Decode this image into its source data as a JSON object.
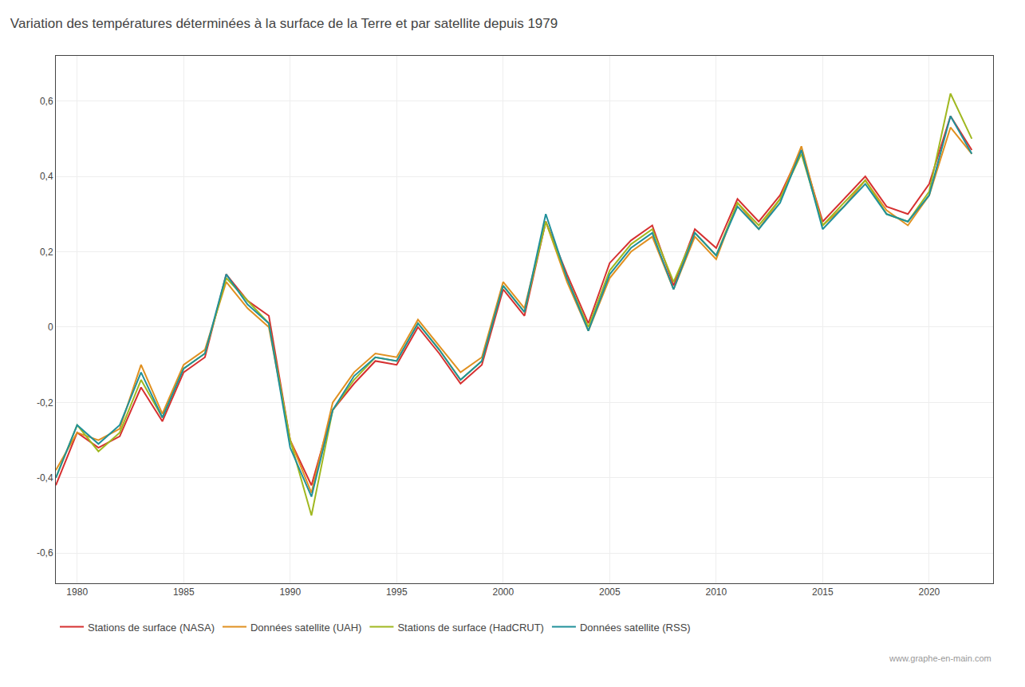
{
  "chart_data": {
    "type": "line",
    "title": "Variation des températures déterminées à la surface de la Terre et par satellite depuis 1979",
    "x": [
      1979,
      1980,
      1981,
      1982,
      1983,
      1984,
      1985,
      1986,
      1987,
      1988,
      1989,
      1990,
      1991,
      1992,
      1993,
      1994,
      1995,
      1996,
      1997,
      1998,
      1999,
      2000,
      2001,
      2002,
      2003,
      2004,
      2005,
      2006,
      2007,
      2008,
      2009,
      2010,
      2011,
      2012,
      2013,
      2014,
      2015,
      2016,
      2017,
      2018,
      2019,
      2020,
      2021,
      2022
    ],
    "series": [
      {
        "name": "Stations de surface (NASA)",
        "color": "#d63030",
        "values": [
          -0.42,
          -0.28,
          -0.32,
          -0.29,
          -0.16,
          -0.25,
          -0.12,
          -0.08,
          0.14,
          0.07,
          0.03,
          -0.3,
          -0.42,
          -0.22,
          -0.15,
          -0.09,
          -0.1,
          0.0,
          -0.07,
          -0.15,
          -0.1,
          0.1,
          0.03,
          0.28,
          0.14,
          0.01,
          0.17,
          0.23,
          0.27,
          0.11,
          0.26,
          0.21,
          0.34,
          0.28,
          0.35,
          0.47,
          0.28,
          0.34,
          0.4,
          0.32,
          0.3,
          0.38,
          0.56,
          0.47
        ]
      },
      {
        "name": "Données satellite (UAH)",
        "color": "#e09020",
        "values": [
          -0.38,
          -0.28,
          -0.3,
          -0.27,
          -0.1,
          -0.23,
          -0.1,
          -0.06,
          0.12,
          0.05,
          0.0,
          -0.3,
          -0.44,
          -0.2,
          -0.12,
          -0.07,
          -0.08,
          0.02,
          -0.05,
          -0.12,
          -0.08,
          0.12,
          0.05,
          0.28,
          0.12,
          -0.01,
          0.13,
          0.2,
          0.24,
          0.1,
          0.24,
          0.18,
          0.33,
          0.26,
          0.34,
          0.48,
          0.27,
          0.32,
          0.39,
          0.31,
          0.27,
          0.35,
          0.53,
          0.46
        ]
      },
      {
        "name": "Stations de surface (HadCRUT)",
        "color": "#a0b820",
        "values": [
          -0.4,
          -0.26,
          -0.33,
          -0.28,
          -0.14,
          -0.24,
          -0.11,
          -0.07,
          0.13,
          0.07,
          0.01,
          -0.3,
          -0.5,
          -0.22,
          -0.14,
          -0.08,
          -0.09,
          0.01,
          -0.06,
          -0.14,
          -0.09,
          0.11,
          0.04,
          0.28,
          0.13,
          0.0,
          0.15,
          0.22,
          0.26,
          0.12,
          0.25,
          0.19,
          0.33,
          0.27,
          0.34,
          0.46,
          0.27,
          0.33,
          0.39,
          0.3,
          0.28,
          0.36,
          0.62,
          0.5
        ]
      },
      {
        "name": "Données satellite (RSS)",
        "color": "#20909a",
        "values": [
          -0.4,
          -0.26,
          -0.31,
          -0.26,
          -0.12,
          -0.24,
          -0.11,
          -0.07,
          0.14,
          0.06,
          0.01,
          -0.32,
          -0.45,
          -0.22,
          -0.13,
          -0.08,
          -0.09,
          0.01,
          -0.06,
          -0.14,
          -0.09,
          0.11,
          0.04,
          0.3,
          0.13,
          -0.01,
          0.14,
          0.21,
          0.25,
          0.1,
          0.25,
          0.19,
          0.32,
          0.26,
          0.33,
          0.47,
          0.26,
          0.32,
          0.38,
          0.3,
          0.28,
          0.35,
          0.56,
          0.46
        ]
      }
    ],
    "xlim": [
      1979,
      2023
    ],
    "xticks": [
      1980,
      1985,
      1990,
      1995,
      2000,
      2005,
      2010,
      2015,
      2020
    ],
    "ylim": [
      -0.68,
      0.72
    ],
    "yticks": [
      {
        "value": -0.6,
        "label": "-0,6"
      },
      {
        "value": -0.4,
        "label": "-0,4"
      },
      {
        "value": -0.2,
        "label": "-0,2"
      },
      0,
      {
        "value": 0.2,
        "label": "0,2"
      },
      {
        "value": 0.4,
        "label": "0,4"
      },
      {
        "value": 0.6,
        "label": "0,6"
      }
    ],
    "grid": true,
    "legend": "bottom",
    "annotations": [
      "www.graphe-en-main.com"
    ]
  }
}
